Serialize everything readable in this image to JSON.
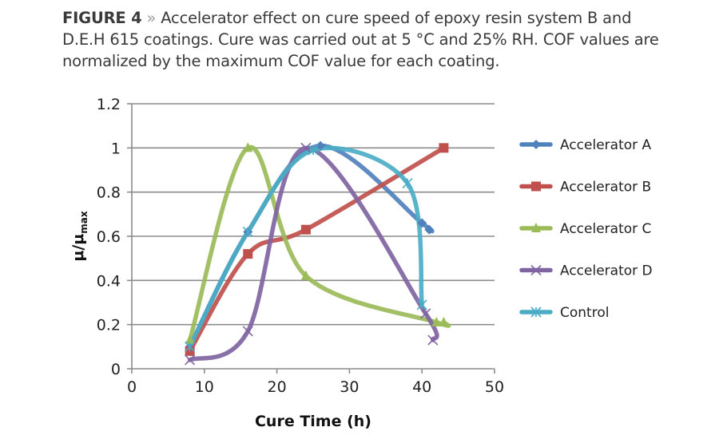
{
  "caption": {
    "figure_label": "FIGURE 4",
    "separator": "»",
    "text": "Accelerator effect on cure speed of epoxy resin system B and D.E.H 615 coatings. Cure was carried out at 5 °C and 25% RH. COF values are normalized by the maximum COF value for each coating."
  },
  "chart_data": {
    "type": "line",
    "title": "Accelerator effect on cure speed of epoxy resin system B and D.E.H 615 coatings",
    "xlabel": "Cure Time (h)",
    "ylabel_main": "μ/μ",
    "ylabel_sub": "max",
    "xlim": [
      0,
      50
    ],
    "ylim": [
      0,
      1.2
    ],
    "xticks": [
      0,
      10,
      20,
      30,
      40,
      50
    ],
    "yticks": [
      0,
      0.2,
      0.4,
      0.6,
      0.8,
      1,
      1.2
    ],
    "ytick_labels": [
      "0",
      "0.2",
      "0.4",
      "0.6",
      "0.8",
      "1",
      "1.2"
    ],
    "grid": true,
    "smooth": true,
    "legend_position": "right",
    "series": [
      {
        "name": "Accelerator A",
        "color": "#4f81bd",
        "marker": "diamond",
        "x": [
          8,
          16,
          26,
          40,
          41
        ],
        "y": [
          0.1,
          0.62,
          1.01,
          0.66,
          0.63
        ]
      },
      {
        "name": "Accelerator B",
        "color": "#c0504d",
        "marker": "square",
        "x": [
          8,
          16,
          24,
          43
        ],
        "y": [
          0.08,
          0.52,
          0.63,
          1.0
        ]
      },
      {
        "name": "Accelerator C",
        "color": "#9bbb59",
        "marker": "triangle",
        "x": [
          8,
          16,
          24,
          42,
          43
        ],
        "y": [
          0.13,
          1.0,
          0.42,
          0.21,
          0.21
        ]
      },
      {
        "name": "Accelerator D",
        "color": "#8064a2",
        "marker": "x",
        "x": [
          8,
          16,
          24,
          40.5,
          41.5
        ],
        "y": [
          0.04,
          0.17,
          1.0,
          0.25,
          0.13
        ]
      },
      {
        "name": "Control",
        "color": "#4bacc6",
        "marker": "star",
        "x": [
          8,
          16,
          25,
          38,
          40
        ],
        "y": [
          0.1,
          0.62,
          0.99,
          0.84,
          0.29
        ]
      }
    ]
  }
}
